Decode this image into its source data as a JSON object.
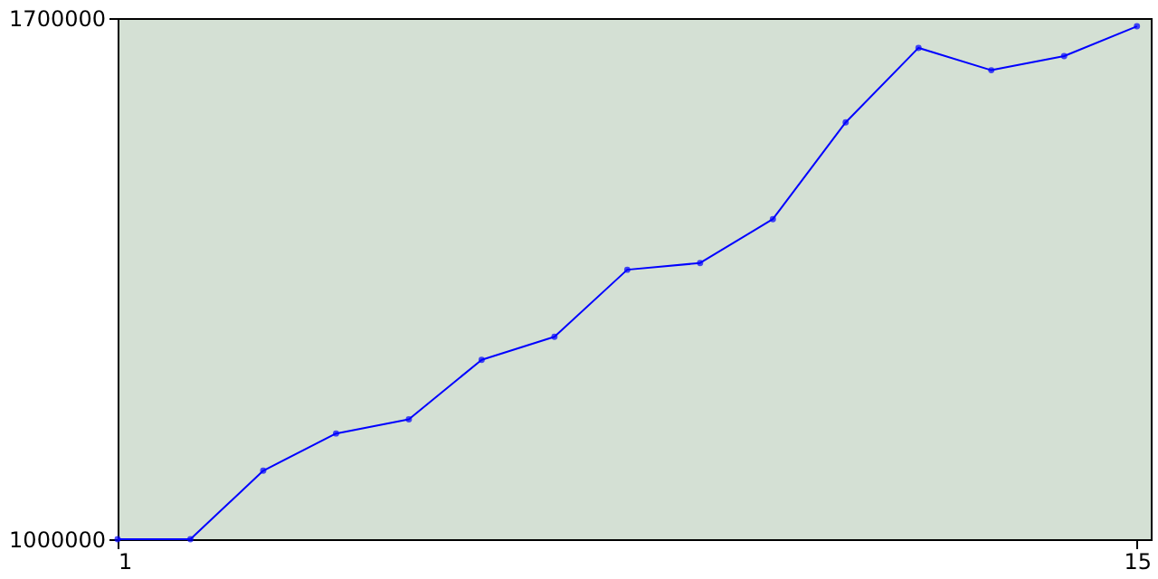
{
  "chart_data": {
    "type": "line",
    "x": [
      1,
      2,
      3,
      4,
      5,
      6,
      7,
      8,
      9,
      10,
      11,
      12,
      13,
      14,
      15
    ],
    "series": [
      {
        "color": "#0000ff",
        "values": [
          1000000,
          1000000,
          1092000,
          1142000,
          1161000,
          1241000,
          1272000,
          1362000,
          1371000,
          1430000,
          1560000,
          1660000,
          1630000,
          1649000,
          1689000
        ]
      }
    ],
    "xlim": [
      1,
      15.19
    ],
    "xticks": [
      1,
      15
    ],
    "ylim": [
      1000000,
      1700000
    ],
    "yticks": [
      1000000,
      1700000
    ],
    "grid": false,
    "legend": false,
    "marker": "circle",
    "line_style": "solid"
  }
}
